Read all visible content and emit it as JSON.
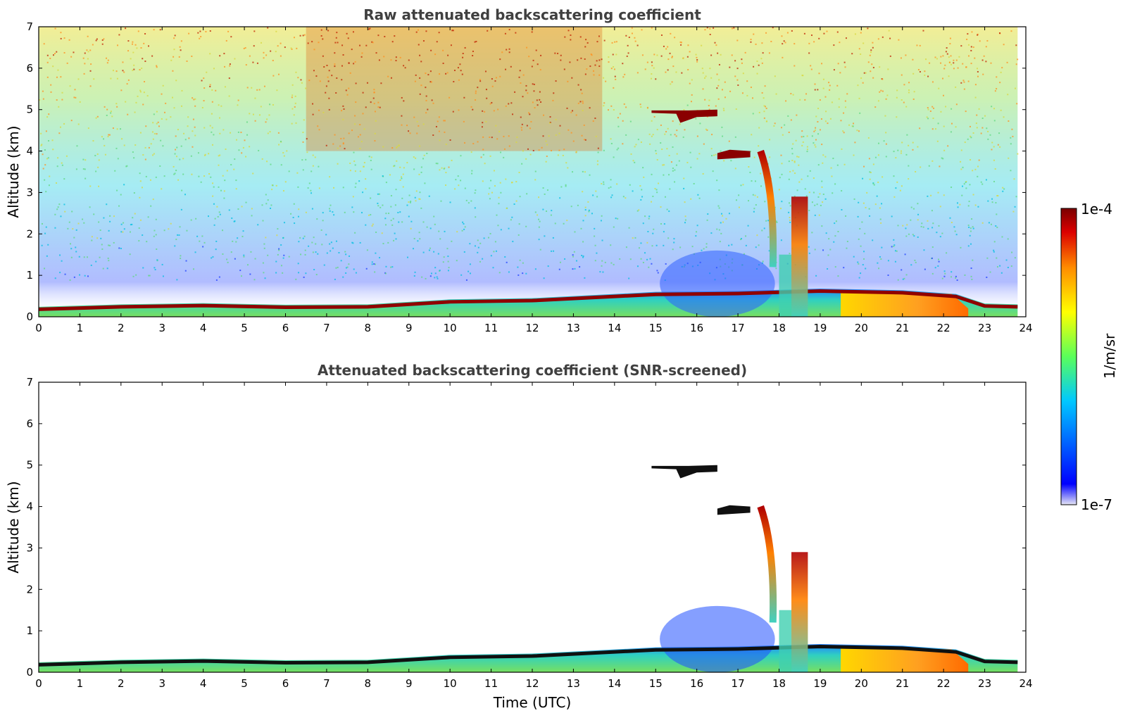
{
  "chart_data": [
    {
      "type": "heatmap",
      "title": "Raw attenuated backscattering coefficient",
      "xlabel": "",
      "ylabel": "Altitude (km)",
      "xlim": [
        0,
        24
      ],
      "ylim": [
        0,
        7
      ],
      "xticks": [
        "0",
        "1",
        "2",
        "3",
        "4",
        "5",
        "6",
        "7",
        "8",
        "9",
        "10",
        "11",
        "12",
        "13",
        "14",
        "15",
        "16",
        "17",
        "18",
        "19",
        "20",
        "21",
        "22",
        "23",
        "24"
      ],
      "yticks": [
        "0",
        "1",
        "2",
        "3",
        "4",
        "5",
        "6",
        "7"
      ],
      "features": [
        {
          "name": "boundary layer",
          "x": [
            0,
            23.8
          ],
          "y": [
            0,
            0.6
          ]
        },
        {
          "name": "cloud layer",
          "x": [
            14.9,
            16.5
          ],
          "y": [
            4.65,
            5.0
          ]
        },
        {
          "name": "cloud layer",
          "x": [
            16.5,
            17.3
          ],
          "y": [
            3.8,
            4.0
          ]
        },
        {
          "name": "precipitation fall streak",
          "x": [
            17.5,
            18.9
          ],
          "y": [
            0,
            4.0
          ]
        }
      ]
    },
    {
      "type": "heatmap",
      "title": "Attenuated backscattering coefficient (SNR-screened)",
      "xlabel": "Time (UTC)",
      "ylabel": "Altitude (km)",
      "xlim": [
        0,
        24
      ],
      "ylim": [
        0,
        7
      ],
      "xticks": [
        "0",
        "1",
        "2",
        "3",
        "4",
        "5",
        "6",
        "7",
        "8",
        "9",
        "10",
        "11",
        "12",
        "13",
        "14",
        "15",
        "16",
        "17",
        "18",
        "19",
        "20",
        "21",
        "22",
        "23",
        "24"
      ],
      "yticks": [
        "0",
        "1",
        "2",
        "3",
        "4",
        "5",
        "6",
        "7"
      ],
      "features": [
        {
          "name": "boundary layer",
          "x": [
            0,
            23.8
          ],
          "y": [
            0,
            0.6
          ]
        },
        {
          "name": "cloud layer",
          "x": [
            14.9,
            16.5
          ],
          "y": [
            4.65,
            5.0
          ]
        },
        {
          "name": "cloud layer",
          "x": [
            16.5,
            17.3
          ],
          "y": [
            3.8,
            4.0
          ]
        },
        {
          "name": "precipitation fall streak",
          "x": [
            17.5,
            18.9
          ],
          "y": [
            0,
            4.0
          ]
        }
      ]
    }
  ],
  "colorbar": {
    "label": "1/m/sr",
    "max_label": "1e-4",
    "min_label": "1e-7",
    "scale": "log",
    "colormap": [
      "#e6e6f5",
      "#0000ff",
      "#00c8ff",
      "#5aff5a",
      "#ffff00",
      "#ff8c00",
      "#dc0000",
      "#7a0000"
    ]
  }
}
